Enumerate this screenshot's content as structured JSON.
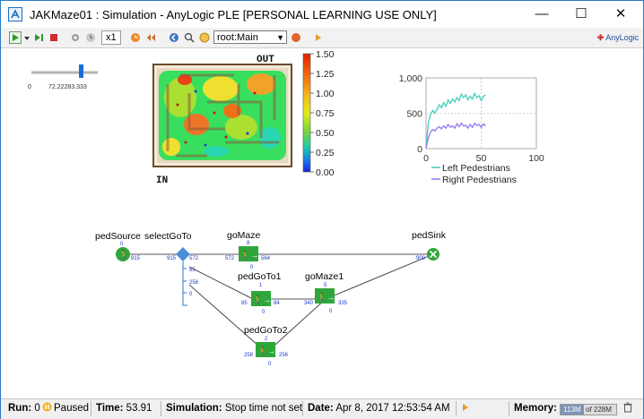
{
  "window": {
    "title": "JAKMaze01 : Simulation - AnyLogic PLE [PERSONAL LEARNING USE ONLY]",
    "minimize_glyph": "—",
    "maximize_glyph": "☐",
    "close_glyph": "✕"
  },
  "toolbar": {
    "speed_label": "x1",
    "experiment_select": "root:Main",
    "brand_label": "AnyLogic"
  },
  "slider": {
    "min_label": "0",
    "max_label": "72.22283.333",
    "value_fraction": 0.75
  },
  "maze": {
    "out_label": "OUT",
    "in_label": "IN",
    "colorbar_ticks": [
      "1.50",
      "1.25",
      "1.00",
      "0.75",
      "0.50",
      "0.25",
      "0.00"
    ]
  },
  "chart_data": {
    "type": "line",
    "x_ticks": [
      "0",
      "50",
      "100"
    ],
    "y_ticks": [
      "1,000",
      "500",
      "0"
    ],
    "xlim": [
      0,
      100
    ],
    "ylim": [
      0,
      1000
    ],
    "grid": true,
    "legend_position": "bottom",
    "series": [
      {
        "name": "Left Pedestrians",
        "color": "#4fcfc0",
        "x": [
          0,
          2,
          4,
          6,
          8,
          10,
          12,
          14,
          16,
          18,
          20,
          22,
          24,
          26,
          28,
          30,
          32,
          34,
          36,
          38,
          40,
          42,
          44,
          46,
          48,
          50,
          52,
          54
        ],
        "y": [
          0,
          360,
          480,
          540,
          500,
          560,
          620,
          580,
          650,
          600,
          690,
          640,
          700,
          660,
          720,
          680,
          770,
          720,
          760,
          690,
          740,
          700,
          780,
          720,
          750,
          680,
          740,
          760
        ]
      },
      {
        "name": "Right Pedestrians",
        "color": "#9a7ef0",
        "x": [
          0,
          2,
          4,
          6,
          8,
          10,
          12,
          14,
          16,
          18,
          20,
          22,
          24,
          26,
          28,
          30,
          32,
          34,
          36,
          38,
          40,
          42,
          44,
          46,
          48,
          50,
          52,
          54
        ],
        "y": [
          0,
          150,
          230,
          270,
          250,
          290,
          310,
          280,
          320,
          290,
          340,
          300,
          320,
          290,
          350,
          310,
          360,
          320,
          330,
          290,
          340,
          300,
          360,
          330,
          340,
          300,
          350,
          320
        ]
      }
    ]
  },
  "flowchart": {
    "nodes": {
      "pedSource": {
        "name": "pedSource",
        "count": "0",
        "out": "915"
      },
      "selectGoTo": {
        "name": "selectGoTo",
        "in": "915",
        "out1": "572",
        "out2": "85",
        "out3": "258",
        "out4": "0"
      },
      "goMaze": {
        "name": "goMaze",
        "top": "8",
        "in": "572",
        "out": "564",
        "bottom": "0"
      },
      "pedGoTo1": {
        "name": "pedGoTo1",
        "top": "1",
        "in": "85",
        "out": "84",
        "bottom": "0"
      },
      "goMaze1": {
        "name": "goMaze1",
        "top": "5",
        "in": "340",
        "out": "335",
        "bottom": "0"
      },
      "pedGoTo2": {
        "name": "pedGoTo2",
        "top": "2",
        "in": "258",
        "out": "256",
        "bottom": "0"
      },
      "pedSink": {
        "name": "pedSink",
        "in": "900"
      }
    }
  },
  "status": {
    "run_label": "Run:",
    "run_value": "0",
    "state": "Paused",
    "time_label": "Time:",
    "time_value": "53.91",
    "simulation_label": "Simulation:",
    "simulation_value": "Stop time not set",
    "date_label": "Date:",
    "date_value": "Apr 8, 2017 12:53:54 AM",
    "memory_label": "Memory:",
    "memory_used": "113M",
    "memory_total": "of 228M"
  }
}
